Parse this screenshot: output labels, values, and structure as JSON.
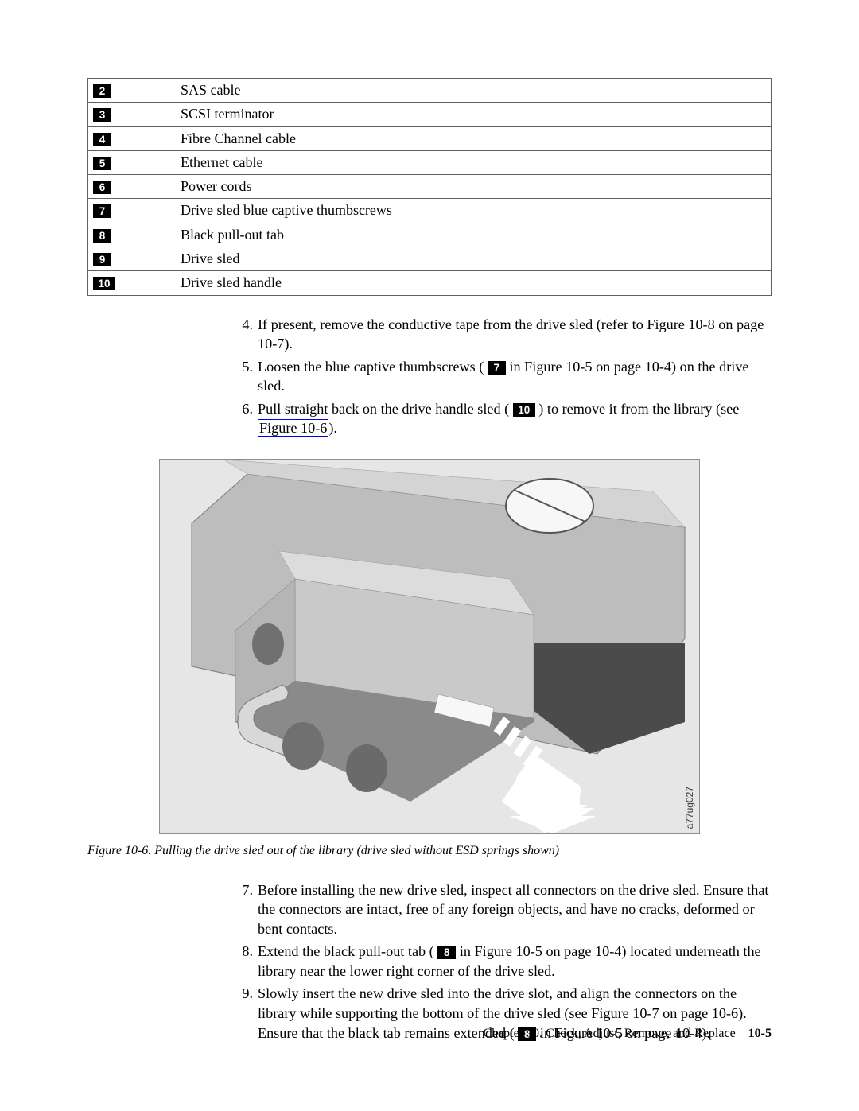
{
  "callouts": [
    {
      "n": "2",
      "desc": "SAS cable"
    },
    {
      "n": "3",
      "desc": "SCSI terminator"
    },
    {
      "n": "4",
      "desc": "Fibre Channel cable"
    },
    {
      "n": "5",
      "desc": "Ethernet cable"
    },
    {
      "n": "6",
      "desc": "Power cords"
    },
    {
      "n": "7",
      "desc": "Drive sled blue captive thumbscrews"
    },
    {
      "n": "8",
      "desc": "Black pull-out tab"
    },
    {
      "n": "9",
      "desc": "Drive sled"
    },
    {
      "n": "10",
      "desc": "Drive sled handle"
    }
  ],
  "steps_a": {
    "s4": {
      "n": "4.",
      "text": "If present, remove the conductive tape from the drive sled (refer to Figure 10-8 on page 10-7)."
    },
    "s5": {
      "n": "5.",
      "pre": "Loosen the blue captive thumbscrews (",
      "badge": "7",
      "post": " in Figure 10-5 on page 10-4) on the drive sled."
    },
    "s6": {
      "n": "6.",
      "pre": "Pull straight back on the drive handle sled (",
      "badge": "10",
      "mid": ") to remove it from the library (see ",
      "link": "Figure 10-6",
      "post": ")."
    }
  },
  "figure": {
    "caption": "Figure 10-6. Pulling the drive sled out of the library (drive sled without ESD springs shown)",
    "id": "a77ug027",
    "bg": "#e6e6e6",
    "library_fill": "#bdbdbd",
    "sled_fill": "#c9c9c9",
    "sled_top": "#dcdcdc",
    "dark": "#4b4b4b",
    "shadow": "#8a8a8a",
    "label_fill": "#f7f7f7",
    "arrow_fill": "#ffffff"
  },
  "steps_b": {
    "s7": {
      "n": "7.",
      "text": "Before installing the new drive sled, inspect all connectors on the drive sled. Ensure that the connectors are intact, free of any foreign objects, and have no cracks, deformed or bent contacts."
    },
    "s8": {
      "n": "8.",
      "pre": "Extend the black pull-out tab (",
      "badge": "8",
      "post": " in Figure 10-5 on page 10-4) located underneath the library near the lower right corner of the drive sled."
    },
    "s9": {
      "n": "9.",
      "pre": "Slowly insert the new drive sled into the drive slot, and align the connectors on the library while supporting the bottom of the drive sled (see Figure 10-7 on page 10-6). Ensure that the black tab remains extended (",
      "badge": "8",
      "post": " in Figure 10-5 on page 10-4)."
    }
  },
  "footer": {
    "chapter": "Chapter 10. Check, Adjust, Remove, and Replace",
    "page": "10-5"
  }
}
